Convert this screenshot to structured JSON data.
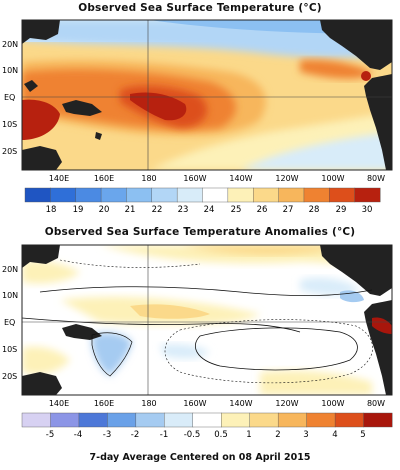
{
  "panels": [
    {
      "title": "Observed Sea Surface Temperature (°C)",
      "lat_labels": [
        "20N",
        "10N",
        "EQ",
        "10S",
        "20S"
      ],
      "lon_labels": [
        "140E",
        "160E",
        "180",
        "160W",
        "140W",
        "120W",
        "100W",
        "80W"
      ],
      "colorbar_labels": [
        "18",
        "19",
        "20",
        "21",
        "22",
        "23",
        "24",
        "25",
        "26",
        "27",
        "28",
        "29",
        "30"
      ],
      "colorbar_colors": [
        "#1f55c2",
        "#2f6fd8",
        "#4b8ae3",
        "#6aa6ec",
        "#8cc0f2",
        "#b2d6f6",
        "#d8ecf9",
        "#ffffff",
        "#fdf1b8",
        "#fbd98a",
        "#f7b65c",
        "#ef8231",
        "#dd4f1b",
        "#b7210f"
      ]
    },
    {
      "title": "Observed Sea Surface Temperature Anomalies (°C)",
      "lat_labels": [
        "20N",
        "10N",
        "EQ",
        "10S",
        "20S"
      ],
      "lon_labels": [
        "140E",
        "160E",
        "180",
        "160W",
        "140W",
        "120W",
        "100W",
        "80W"
      ],
      "colorbar_labels": [
        "-5",
        "-4",
        "-3",
        "-2",
        "-1",
        "-0.5",
        "0.5",
        "1",
        "2",
        "3",
        "4",
        "5"
      ],
      "colorbar_colors": [
        "#d7d1f2",
        "#8c95e6",
        "#4d78d8",
        "#6aa1e8",
        "#a5cbf1",
        "#d9ecf9",
        "#ffffff",
        "#fdf1b8",
        "#fbd98a",
        "#f7b65c",
        "#ef8231",
        "#dd4f1b",
        "#a8160c"
      ]
    }
  ],
  "footer": "7-day Average Centered on 08 April 2015"
}
